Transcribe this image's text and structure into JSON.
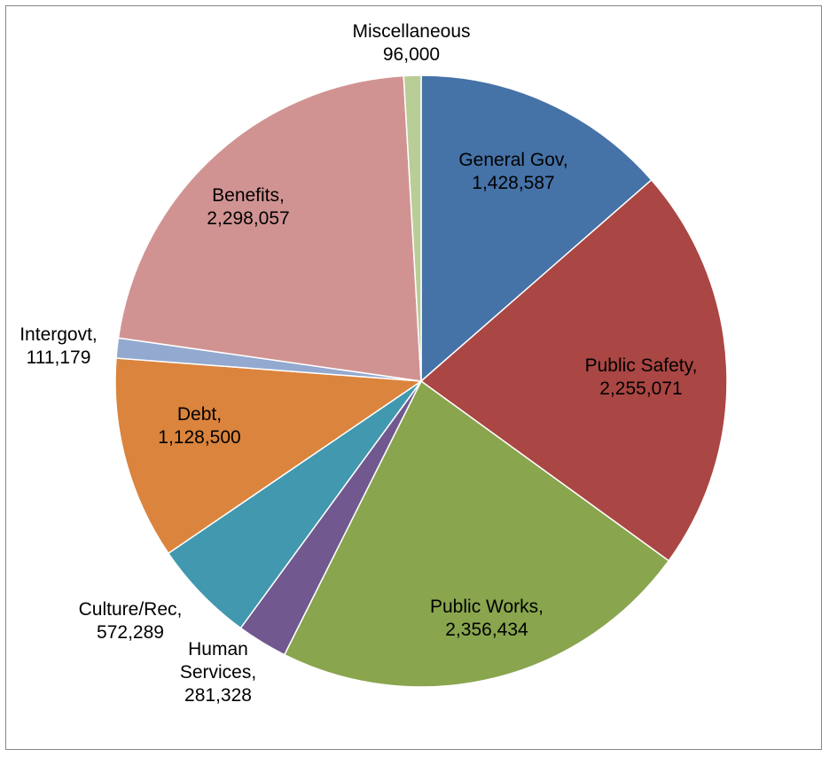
{
  "chart_data": {
    "type": "pie",
    "title": "",
    "start_angle_deg": 0,
    "direction": "clockwise",
    "slices": [
      {
        "name": "General Gov",
        "value": 1428587,
        "value_label": "1,428,587",
        "label": "General Gov,",
        "color": "#4572A7"
      },
      {
        "name": "Public Safety",
        "value": 2255071,
        "value_label": "2,255,071",
        "label": "Public Safety,",
        "color": "#AA4643"
      },
      {
        "name": "Public Works",
        "value": 2356434,
        "value_label": "2,356,434",
        "label": "Public Works,",
        "color": "#89A54E"
      },
      {
        "name": "Human Services",
        "value": 281328,
        "value_label": "281,328",
        "label": "Human Services,",
        "color": "#71588F"
      },
      {
        "name": "Culture/Rec",
        "value": 572289,
        "value_label": "572,289",
        "label": "Culture/Rec,",
        "color": "#4198AF"
      },
      {
        "name": "Debt",
        "value": 1128500,
        "value_label": "1,128,500",
        "label": "Debt,",
        "color": "#DB843D"
      },
      {
        "name": "Intergovt",
        "value": 111179,
        "value_label": "111,179",
        "label": "Intergovt,",
        "color": "#93A9CF"
      },
      {
        "name": "Benefits",
        "value": 2298057,
        "value_label": "2,298,057",
        "label": "Benefits,",
        "color": "#D19392"
      },
      {
        "name": "Miscellaneous",
        "value": 96000,
        "value_label": "96,000",
        "label": "Miscellaneous",
        "color": "#B9CD96"
      }
    ],
    "legend": "none",
    "data_labels": "category name and value"
  }
}
